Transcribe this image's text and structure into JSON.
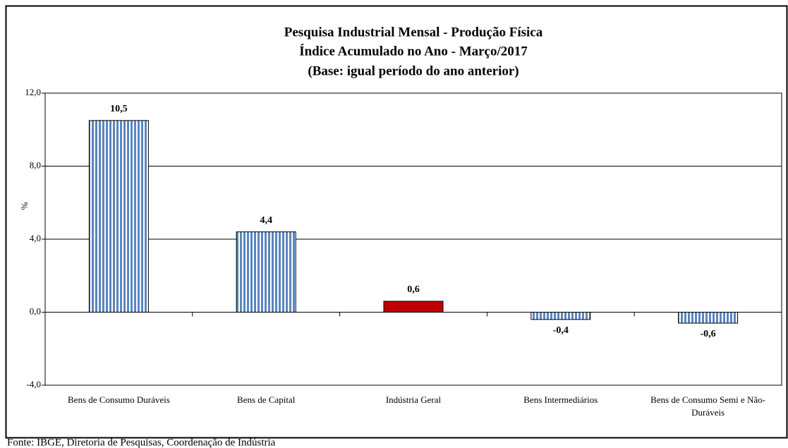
{
  "chart_data": {
    "type": "bar",
    "title": [
      "Pesquisa Industrial Mensal - Produção Física",
      "Índice Acumulado no Ano - Março/2017",
      "(Base: igual período do ano anterior)"
    ],
    "y_label": "%",
    "categories": [
      "Bens de Consumo Duráveis",
      "Bens de Capital",
      "Indústria Geral",
      "Bens Intermediários",
      "Bens de Consumo Semi e Não-Duráveis"
    ],
    "values": [
      10.5,
      4.4,
      0.6,
      -0.4,
      -0.6
    ],
    "value_labels": [
      "10,5",
      "4,4",
      "0,6",
      "-0,4",
      "-0,6"
    ],
    "colors": [
      "#5b86c0",
      "#5b86c0",
      "#c00000",
      "#5b86c0",
      "#5b86c0"
    ],
    "hatch": [
      true,
      true,
      false,
      true,
      true
    ],
    "ylim": [
      -4,
      12
    ],
    "yticks": [
      {
        "value": -4,
        "label": "-4,0"
      },
      {
        "value": 0,
        "label": "0,0"
      },
      {
        "value": 4,
        "label": "4,0"
      },
      {
        "value": 8,
        "label": "8,0"
      },
      {
        "value": 12,
        "label": "12,0"
      }
    ],
    "grid": true,
    "source": "Fonte: IBGE, Diretoria de Pesquisas, Coordenação de Indústria"
  }
}
